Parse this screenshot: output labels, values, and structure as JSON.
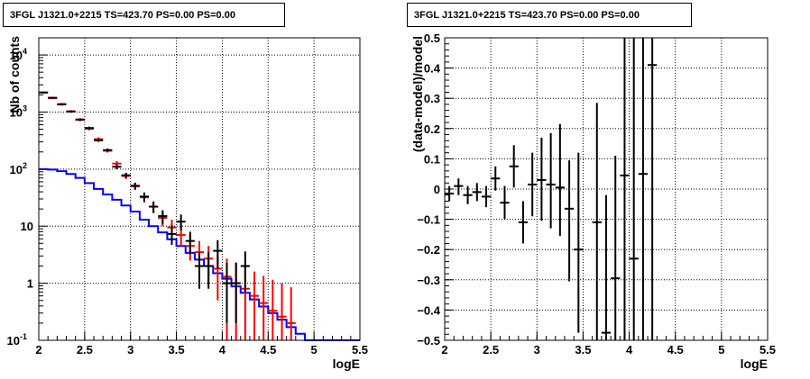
{
  "chart_data": [
    {
      "type": "step+errorbar",
      "title": "3FGL J1321.0+2215 TS=423.70 PS=0.00 PS=0.00",
      "xlabel": "logE",
      "ylabel": "Nb of counts",
      "xlim": [
        2,
        5.5
      ],
      "ylim": [
        0.1,
        20000
      ],
      "yscale": "log",
      "grid": true,
      "x_ticks": [
        "2",
        "2.5",
        "3",
        "3.5",
        "4",
        "4.5",
        "5",
        "5.5"
      ],
      "y_ticks": [
        {
          "value": 0.1,
          "base": "10",
          "exp": "-1"
        },
        {
          "value": 1,
          "base": "1",
          "exp": ""
        },
        {
          "value": 10,
          "base": "10",
          "exp": ""
        },
        {
          "value": 100,
          "base": "10",
          "exp": "2"
        },
        {
          "value": 1000,
          "base": "10",
          "exp": "3"
        },
        {
          "value": 10000,
          "base": "10",
          "exp": "4"
        }
      ],
      "bin_edges": [
        2.0,
        2.1,
        2.2,
        2.3,
        2.4,
        2.5,
        2.6,
        2.7,
        2.8,
        2.9,
        3.0,
        3.1,
        3.2,
        3.3,
        3.4,
        3.5,
        3.6,
        3.7,
        3.8,
        3.9,
        4.0,
        4.1,
        4.2,
        4.3,
        4.4,
        4.5,
        4.6,
        4.7,
        4.8,
        4.9,
        5.0,
        5.1,
        5.2,
        5.3,
        5.4,
        5.5
      ],
      "series": [
        {
          "color": "#0000ff",
          "style": "step",
          "values": [
            100,
            98,
            92,
            82,
            70,
            57,
            45,
            36,
            29,
            23,
            18,
            13,
            10,
            7.8,
            5.9,
            4.5,
            3.4,
            2.6,
            2.0,
            1.5,
            1.2,
            0.88,
            0.68,
            0.52,
            0.39,
            0.3,
            0.23,
            0.17,
            0.13,
            0.1,
            0.1,
            0.1,
            0.1,
            0.1,
            0.1
          ]
        },
        {
          "color": "#ff0000",
          "style": "errorbar",
          "points": [
            {
              "x": 2.05,
              "y": 2200,
              "lo": 2100,
              "hi": 2300
            },
            {
              "x": 2.15,
              "y": 1750,
              "lo": 1680,
              "hi": 1820
            },
            {
              "x": 2.25,
              "y": 1380,
              "lo": 1320,
              "hi": 1440
            },
            {
              "x": 2.35,
              "y": 1030,
              "lo": 980,
              "hi": 1080
            },
            {
              "x": 2.45,
              "y": 730,
              "lo": 690,
              "hi": 770
            },
            {
              "x": 2.55,
              "y": 510,
              "lo": 480,
              "hi": 540
            },
            {
              "x": 2.65,
              "y": 335,
              "lo": 310,
              "hi": 360
            },
            {
              "x": 2.75,
              "y": 210,
              "lo": 195,
              "hi": 225
            },
            {
              "x": 2.85,
              "y": 125,
              "lo": 112,
              "hi": 138
            },
            {
              "x": 2.95,
              "y": 76,
              "lo": 67,
              "hi": 85
            },
            {
              "x": 3.05,
              "y": 50,
              "lo": 43,
              "hi": 57
            },
            {
              "x": 3.15,
              "y": 32,
              "lo": 26,
              "hi": 38
            },
            {
              "x": 3.25,
              "y": 22,
              "lo": 17,
              "hi": 27
            },
            {
              "x": 3.35,
              "y": 14,
              "lo": 10,
              "hi": 18
            },
            {
              "x": 3.45,
              "y": 9.5,
              "lo": 6.5,
              "hi": 13
            },
            {
              "x": 3.55,
              "y": 7.0,
              "lo": 4.5,
              "hi": 10
            },
            {
              "x": 3.65,
              "y": 4.5,
              "lo": 2.5,
              "hi": 7.0
            },
            {
              "x": 3.75,
              "y": 3.5,
              "lo": 1.8,
              "hi": 5.5
            },
            {
              "x": 3.85,
              "y": 2.7,
              "lo": 1.0,
              "hi": 4.5
            },
            {
              "x": 3.95,
              "y": 1.8,
              "lo": 0.5,
              "hi": 3.3
            },
            {
              "x": 4.05,
              "y": 1.3,
              "lo": 0.1,
              "hi": 2.7
            },
            {
              "x": 4.15,
              "y": 1.0,
              "lo": 0.1,
              "hi": 2.3
            },
            {
              "x": 4.25,
              "y": 0.8,
              "lo": 0.1,
              "hi": 1.9
            },
            {
              "x": 4.35,
              "y": 0.6,
              "lo": 0.1,
              "hi": 1.6
            },
            {
              "x": 4.45,
              "y": 0.45,
              "lo": 0.1,
              "hi": 1.35
            },
            {
              "x": 4.55,
              "y": 0.33,
              "lo": 0.1,
              "hi": 1.15
            },
            {
              "x": 4.65,
              "y": 0.26,
              "lo": 0.1,
              "hi": 1.0
            },
            {
              "x": 4.75,
              "y": 0.2,
              "lo": 0.1,
              "hi": 0.85
            }
          ]
        },
        {
          "color": "#000000",
          "style": "errorbar",
          "points": [
            {
              "x": 2.05,
              "y": 2200,
              "lo": 2130,
              "hi": 2270
            },
            {
              "x": 2.15,
              "y": 1780,
              "lo": 1720,
              "hi": 1840
            },
            {
              "x": 2.25,
              "y": 1360,
              "lo": 1300,
              "hi": 1420
            },
            {
              "x": 2.35,
              "y": 1020,
              "lo": 970,
              "hi": 1070
            },
            {
              "x": 2.45,
              "y": 740,
              "lo": 700,
              "hi": 780
            },
            {
              "x": 2.55,
              "y": 525,
              "lo": 495,
              "hi": 555
            },
            {
              "x": 2.65,
              "y": 320,
              "lo": 300,
              "hi": 340
            },
            {
              "x": 2.75,
              "y": 215,
              "lo": 200,
              "hi": 230
            },
            {
              "x": 2.85,
              "y": 110,
              "lo": 100,
              "hi": 120
            },
            {
              "x": 2.95,
              "y": 78,
              "lo": 70,
              "hi": 86
            },
            {
              "x": 3.05,
              "y": 51,
              "lo": 44,
              "hi": 58
            },
            {
              "x": 3.15,
              "y": 33,
              "lo": 27,
              "hi": 39
            },
            {
              "x": 3.25,
              "y": 22,
              "lo": 17,
              "hi": 27
            },
            {
              "x": 3.35,
              "y": 15,
              "lo": 11,
              "hi": 19
            },
            {
              "x": 3.45,
              "y": 7.3,
              "lo": 4.7,
              "hi": 10.5
            },
            {
              "x": 3.55,
              "y": 12,
              "lo": 8.5,
              "hi": 16
            },
            {
              "x": 3.65,
              "y": 5.5,
              "lo": 3.2,
              "hi": 8.0
            },
            {
              "x": 3.75,
              "y": 2.0,
              "lo": 0.8,
              "hi": 3.5
            },
            {
              "x": 3.85,
              "y": 2.0,
              "lo": 0.8,
              "hi": 3.5
            },
            {
              "x": 3.95,
              "y": 3.7,
              "lo": 1.8,
              "hi": 5.7
            },
            {
              "x": 4.05,
              "y": 1.0,
              "lo": 0.2,
              "hi": 2.3
            },
            {
              "x": 4.15,
              "y": 1.0,
              "lo": 0.2,
              "hi": 2.3
            },
            {
              "x": 4.25,
              "y": 2.0,
              "lo": 0.7,
              "hi": 3.6
            }
          ]
        }
      ]
    },
    {
      "type": "errorbar",
      "title": "3FGL J1321.0+2215 TS=423.70 PS=0.00 PS=0.00",
      "xlabel": "logE",
      "ylabel": "(data-model)/model",
      "xlim": [
        2,
        5.5
      ],
      "ylim": [
        -0.5,
        0.5
      ],
      "grid": true,
      "x_ticks": [
        "2",
        "2.5",
        "3",
        "3.5",
        "4",
        "4.5",
        "5",
        "5.5"
      ],
      "y_ticks": [
        "−0.5",
        "−0.4",
        "−0.3",
        "−0.2",
        "−0.1",
        "0",
        "0.1",
        "0.2",
        "0.3",
        "0.4",
        "0.5"
      ],
      "series": [
        {
          "color": "#000000",
          "points": [
            {
              "x": 2.05,
              "y": -0.015,
              "lo": -0.04,
              "hi": 0.01
            },
            {
              "x": 2.15,
              "y": 0.01,
              "lo": -0.02,
              "hi": 0.035
            },
            {
              "x": 2.25,
              "y": -0.02,
              "lo": -0.05,
              "hi": 0.01
            },
            {
              "x": 2.35,
              "y": -0.01,
              "lo": -0.04,
              "hi": 0.02
            },
            {
              "x": 2.45,
              "y": -0.025,
              "lo": -0.06,
              "hi": 0.01
            },
            {
              "x": 2.55,
              "y": 0.035,
              "lo": -0.005,
              "hi": 0.075
            },
            {
              "x": 2.65,
              "y": -0.045,
              "lo": -0.1,
              "hi": 0.01
            },
            {
              "x": 2.75,
              "y": 0.075,
              "lo": 0.005,
              "hi": 0.145
            },
            {
              "x": 2.85,
              "y": -0.11,
              "lo": -0.18,
              "hi": -0.04
            },
            {
              "x": 2.95,
              "y": 0.015,
              "lo": -0.09,
              "hi": 0.12
            },
            {
              "x": 3.05,
              "y": 0.03,
              "lo": -0.105,
              "hi": 0.17
            },
            {
              "x": 3.15,
              "y": 0.015,
              "lo": -0.13,
              "hi": 0.185
            },
            {
              "x": 3.25,
              "y": 0.005,
              "lo": -0.155,
              "hi": 0.215
            },
            {
              "x": 3.35,
              "y": -0.065,
              "lo": -0.305,
              "hi": 0.095
            },
            {
              "x": 3.45,
              "y": -0.2,
              "lo": -0.475,
              "hi": 0.12
            },
            {
              "x": 3.65,
              "y": -0.11,
              "lo": -0.5,
              "hi": 0.285
            },
            {
              "x": 3.75,
              "y": -0.475,
              "lo": -0.5,
              "hi": -0.02
            },
            {
              "x": 3.85,
              "y": -0.295,
              "lo": -0.5,
              "hi": 0.11
            },
            {
              "x": 3.95,
              "y": 0.045,
              "lo": -0.5,
              "hi": 0.5
            },
            {
              "x": 4.05,
              "y": -0.23,
              "lo": -0.5,
              "hi": 0.5
            },
            {
              "x": 4.15,
              "y": 0.05,
              "lo": -0.5,
              "hi": 0.5
            },
            {
              "x": 4.25,
              "y": 0.41,
              "lo": -0.5,
              "hi": 0.5
            }
          ]
        }
      ]
    }
  ]
}
